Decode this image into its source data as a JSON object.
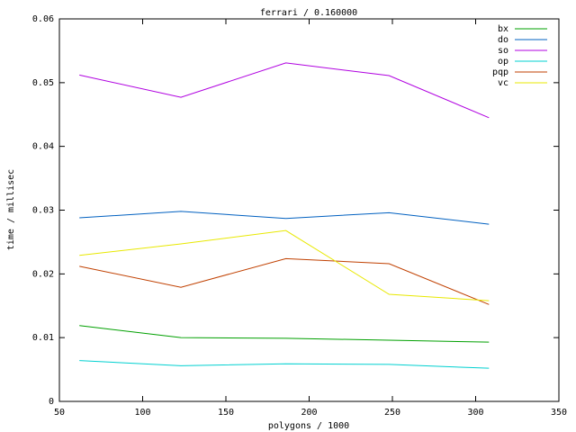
{
  "chart_data": {
    "type": "line",
    "title": "ferrari / 0.160000",
    "x_label": "polygons / 1000",
    "y_label": "time / millisec",
    "x": [
      62,
      123,
      186,
      248,
      308
    ],
    "series": [
      {
        "name": "bx",
        "color": "#00a000",
        "values": [
          0.0119,
          0.01,
          0.0099,
          0.0096,
          0.0093
        ]
      },
      {
        "name": "do",
        "color": "#0060c0",
        "values": [
          0.0288,
          0.0298,
          0.0287,
          0.0296,
          0.0278
        ]
      },
      {
        "name": "so",
        "color": "#b000e0",
        "values": [
          0.0512,
          0.0477,
          0.0531,
          0.0511,
          0.0445
        ]
      },
      {
        "name": "op",
        "color": "#00d0d0",
        "values": [
          0.0064,
          0.0056,
          0.0059,
          0.0058,
          0.0052
        ]
      },
      {
        "name": "pqp",
        "color": "#c04000",
        "values": [
          0.0212,
          0.0179,
          0.0224,
          0.0216,
          0.0152
        ]
      },
      {
        "name": "vc",
        "color": "#e8e800",
        "values": [
          0.0229,
          0.0247,
          0.0268,
          0.0168,
          0.0158
        ]
      }
    ],
    "xlim": [
      50,
      350
    ],
    "xticks": [
      50,
      100,
      150,
      200,
      250,
      300,
      350
    ],
    "ylim": [
      0,
      0.06
    ],
    "yticks": [
      0,
      0.01,
      0.02,
      0.03,
      0.04,
      0.05,
      0.06
    ],
    "legend": "top-right"
  }
}
